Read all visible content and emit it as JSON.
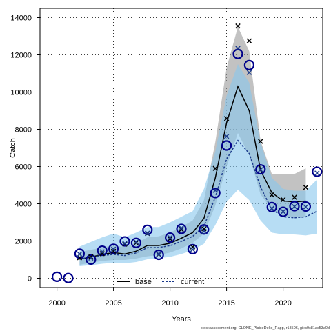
{
  "chart_data": {
    "type": "line",
    "xlabel": "Years",
    "ylabel": "Catch",
    "xlim": [
      1998.5,
      2023.5
    ],
    "ylim": [
      -500,
      14500
    ],
    "x_ticks": [
      2000,
      2005,
      2010,
      2015,
      2020
    ],
    "x_tick_labels": [
      "2000",
      "2005",
      "2010",
      "2015",
      "2020"
    ],
    "y_ticks": [
      0,
      2000,
      4000,
      6000,
      8000,
      10000,
      12000,
      14000
    ],
    "y_tick_labels": [
      "0",
      "2000",
      "4000",
      "6000",
      "8000",
      "10000",
      "12000",
      "14000"
    ],
    "grid": true,
    "legend_position": "bottom",
    "footnote": "stockassessment.org, CLONE_PlaiceDeko_Rapp, r18506, git:c9c81ac53a0d",
    "x": [
      2000,
      2001,
      2002,
      2003,
      2004,
      2005,
      2006,
      2007,
      2008,
      2009,
      2010,
      2011,
      2012,
      2013,
      2014,
      2015,
      2016,
      2017,
      2018,
      2019,
      2020,
      2021,
      2022,
      2023
    ],
    "observed": [
      80,
      10,
      1320,
      1000,
      1480,
      1580,
      1980,
      1900,
      2600,
      1260,
      2180,
      2650,
      1560,
      2620,
      4580,
      7130,
      12050,
      11450,
      5850,
      3820,
      3570,
      3870,
      3850,
      5720
    ],
    "series": [
      {
        "name": "base",
        "color": "#000000",
        "dash": "solid",
        "band_color": "#999999",
        "line": [
          null,
          null,
          1020,
          1140,
          1280,
          1380,
          1300,
          1450,
          1760,
          1760,
          1880,
          2150,
          2450,
          3220,
          5380,
          8350,
          10300,
          9000,
          5800,
          4600,
          4150,
          4100,
          4150,
          null
        ],
        "lower": [
          null,
          null,
          720,
          830,
          930,
          980,
          980,
          1060,
          1180,
          1250,
          1380,
          1600,
          1900,
          2400,
          3900,
          6000,
          7800,
          6600,
          4500,
          3700,
          3300,
          3300,
          3300,
          null
        ],
        "upper": [
          null,
          null,
          1400,
          1530,
          1650,
          1760,
          1680,
          1880,
          2200,
          2250,
          2450,
          2750,
          3100,
          4200,
          7300,
          11300,
          13500,
          12200,
          7400,
          5600,
          5600,
          5600,
          5900,
          null
        ],
        "points": [
          null,
          null,
          1100,
          1150,
          1320,
          1450,
          1830,
          1900,
          2400,
          1280,
          2120,
          2620,
          1680,
          2650,
          5900,
          8580,
          13550,
          12750,
          7350,
          4480,
          4220,
          4350,
          4880,
          null
        ]
      },
      {
        "name": "current",
        "color": "#1a3a8c",
        "dash": "dashed",
        "band_color": "#87c6ed",
        "line": [
          null,
          null,
          1050,
          1130,
          1230,
          1280,
          1220,
          1360,
          1640,
          1650,
          1750,
          1980,
          2250,
          2800,
          4350,
          6400,
          7400,
          6700,
          4900,
          3700,
          3300,
          3250,
          3300,
          3600
        ],
        "lower": [
          null,
          null,
          650,
          700,
          780,
          830,
          800,
          870,
          1020,
          1080,
          1150,
          1300,
          1500,
          1850,
          2850,
          4100,
          4750,
          4200,
          3100,
          2450,
          2350,
          2350,
          2300,
          2400
        ],
        "upper": [
          null,
          null,
          1700,
          1950,
          2200,
          2400,
          2200,
          2450,
          2750,
          2750,
          3000,
          3300,
          3600,
          4800,
          6800,
          9800,
          11500,
          10500,
          7300,
          5400,
          4800,
          4700,
          4700,
          5300
        ],
        "points": [
          null,
          null,
          1300,
          1080,
          1420,
          1560,
          1870,
          1950,
          2420,
          1300,
          2180,
          2690,
          1540,
          2520,
          4720,
          7620,
          12350,
          11050,
          5830,
          3750,
          3580,
          3850,
          3830,
          5650
        ]
      }
    ]
  }
}
